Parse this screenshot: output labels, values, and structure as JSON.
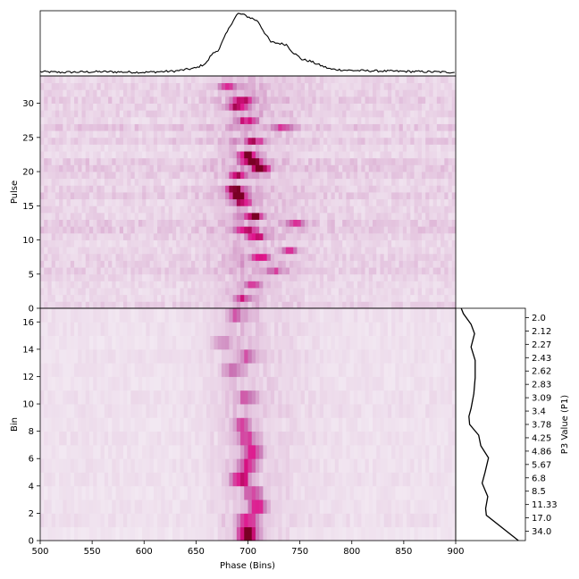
{
  "chart_data": [
    {
      "id": "pulse_profile",
      "type": "line",
      "description_units": "Phase (Bins) vs normalized intensity",
      "xlim": [
        500,
        900
      ],
      "ylim": [
        0,
        1
      ],
      "anchors": [
        [
          500,
          0.04
        ],
        [
          520,
          0.03
        ],
        [
          560,
          0.04
        ],
        [
          600,
          0.03
        ],
        [
          630,
          0.05
        ],
        [
          650,
          0.1
        ],
        [
          660,
          0.18
        ],
        [
          665,
          0.32
        ],
        [
          672,
          0.4
        ],
        [
          678,
          0.62
        ],
        [
          685,
          0.85
        ],
        [
          690,
          0.98
        ],
        [
          695,
          0.97
        ],
        [
          700,
          0.93
        ],
        [
          705,
          0.9
        ],
        [
          710,
          0.85
        ],
        [
          715,
          0.7
        ],
        [
          722,
          0.52
        ],
        [
          730,
          0.5
        ],
        [
          737,
          0.48
        ],
        [
          743,
          0.36
        ],
        [
          752,
          0.24
        ],
        [
          760,
          0.21
        ],
        [
          770,
          0.14
        ],
        [
          780,
          0.08
        ],
        [
          800,
          0.06
        ],
        [
          830,
          0.05
        ],
        [
          870,
          0.04
        ],
        [
          900,
          0.03
        ]
      ]
    },
    {
      "id": "pulse_stack",
      "type": "heatmap",
      "xlabel": "",
      "ylabel": "Pulse",
      "xlim": [
        500,
        900
      ],
      "ylim": [
        0,
        34
      ],
      "yticks": [
        0,
        5,
        10,
        15,
        20,
        25,
        30
      ],
      "rows": 34,
      "colormap": [
        "#f5f0f6",
        "#e2bfdc",
        "#c978b6",
        "#e0148c",
        "#7a0024"
      ],
      "hotspots": [
        {
          "pulse": 32,
          "phase": 680,
          "v": 0.45
        },
        {
          "pulse": 30,
          "phase": 695,
          "v": 0.55
        },
        {
          "pulse": 29,
          "phase": 690,
          "v": 0.65
        },
        {
          "pulse": 27,
          "phase": 700,
          "v": 0.6
        },
        {
          "pulse": 26,
          "phase": 735,
          "v": 0.45
        },
        {
          "pulse": 24,
          "phase": 705,
          "v": 0.55
        },
        {
          "pulse": 22,
          "phase": 700,
          "v": 0.8
        },
        {
          "pulse": 21,
          "phase": 705,
          "v": 1.0
        },
        {
          "pulse": 20,
          "phase": 712,
          "v": 0.95
        },
        {
          "pulse": 19,
          "phase": 690,
          "v": 0.55
        },
        {
          "pulse": 17,
          "phase": 688,
          "v": 0.8
        },
        {
          "pulse": 16,
          "phase": 690,
          "v": 0.9
        },
        {
          "pulse": 15,
          "phase": 695,
          "v": 0.65
        },
        {
          "pulse": 13,
          "phase": 705,
          "v": 0.75
        },
        {
          "pulse": 12,
          "phase": 745,
          "v": 0.45
        },
        {
          "pulse": 11,
          "phase": 700,
          "v": 0.6
        },
        {
          "pulse": 10,
          "phase": 708,
          "v": 0.65
        },
        {
          "pulse": 8,
          "phase": 740,
          "v": 0.55
        },
        {
          "pulse": 7,
          "phase": 712,
          "v": 0.6
        },
        {
          "pulse": 5,
          "phase": 725,
          "v": 0.45
        },
        {
          "pulse": 3,
          "phase": 705,
          "v": 0.4
        },
        {
          "pulse": 1,
          "phase": 695,
          "v": 0.45
        }
      ]
    },
    {
      "id": "folded_bins",
      "type": "heatmap",
      "xlabel": "Phase (Bins)",
      "ylabel": "Bin",
      "xlim": [
        500,
        900
      ],
      "ylim": [
        0,
        17
      ],
      "xticks": [
        500,
        550,
        600,
        650,
        700,
        750,
        800,
        850,
        900
      ],
      "yticks": [
        0,
        2,
        4,
        6,
        8,
        10,
        12,
        14,
        16
      ],
      "rows": 17,
      "hotspots": [
        {
          "bin": 0,
          "phase": 700,
          "v": 1.0
        },
        {
          "bin": 1,
          "phase": 700,
          "v": 0.55
        },
        {
          "bin": 2,
          "phase": 710,
          "v": 0.6
        },
        {
          "bin": 3,
          "phase": 705,
          "v": 0.5
        },
        {
          "bin": 4,
          "phase": 693,
          "v": 0.7
        },
        {
          "bin": 5,
          "phase": 700,
          "v": 0.55
        },
        {
          "bin": 6,
          "phase": 705,
          "v": 0.55
        },
        {
          "bin": 7,
          "phase": 700,
          "v": 0.5
        },
        {
          "bin": 8,
          "phase": 695,
          "v": 0.4
        },
        {
          "bin": 10,
          "phase": 700,
          "v": 0.35
        },
        {
          "bin": 12,
          "phase": 685,
          "v": 0.4
        },
        {
          "bin": 13,
          "phase": 700,
          "v": 0.35
        },
        {
          "bin": 14,
          "phase": 675,
          "v": 0.3
        },
        {
          "bin": 16,
          "phase": 690,
          "v": 0.35
        }
      ]
    },
    {
      "id": "p3_spectrum",
      "type": "line",
      "ylabel_right": "P3 Value (P1)",
      "ytick_labels": [
        "2.0",
        "2.12",
        "2.27",
        "2.43",
        "2.62",
        "2.83",
        "3.09",
        "3.4",
        "3.78",
        "4.25",
        "4.86",
        "5.67",
        "6.8",
        "8.5",
        "11.33",
        "17.0",
        "34.0"
      ],
      "ytick_positions": [
        16,
        15,
        14,
        13,
        12,
        11,
        10,
        9,
        8,
        7,
        6,
        5,
        4,
        3,
        2,
        1,
        0
      ],
      "ylim": [
        -0.7,
        16.7
      ],
      "xlim": [
        0,
        1
      ],
      "points": [
        [
          0.08,
          16.7
        ],
        [
          0.11,
          16.3
        ],
        [
          0.22,
          15.5
        ],
        [
          0.27,
          14.8
        ],
        [
          0.22,
          13.8
        ],
        [
          0.28,
          12.8
        ],
        [
          0.28,
          11.5
        ],
        [
          0.26,
          10.3
        ],
        [
          0.22,
          9.2
        ],
        [
          0.19,
          8.6
        ],
        [
          0.2,
          8.0
        ],
        [
          0.33,
          7.2
        ],
        [
          0.36,
          6.4
        ],
        [
          0.47,
          5.5
        ],
        [
          0.42,
          4.4
        ],
        [
          0.38,
          3.6
        ],
        [
          0.46,
          2.6
        ],
        [
          0.43,
          1.7
        ],
        [
          0.44,
          1.2
        ],
        [
          0.9,
          -0.7
        ]
      ]
    }
  ]
}
